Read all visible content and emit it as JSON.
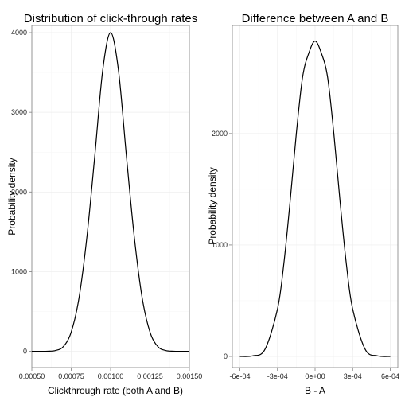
{
  "chart_data": [
    {
      "type": "line",
      "title": "Distribution of click-through rates",
      "xlabel": "Clickthrough rate (both A and B)",
      "ylabel": "Probability density",
      "xlim": [
        0.0005,
        0.0015
      ],
      "ylim": [
        0,
        4000
      ],
      "x_ticks": [
        "0.00050",
        "0.00075",
        "0.00100",
        "0.00125",
        "0.00150"
      ],
      "y_ticks": [
        "0",
        "1000",
        "2000",
        "3000",
        "4000"
      ],
      "grid": true,
      "series": [
        {
          "x": [
            0.0005,
            0.00055,
            0.0006,
            0.00065,
            0.0007,
            0.00075,
            0.0008,
            0.00085,
            0.0009,
            0.00095,
            0.001,
            0.00105,
            0.0011,
            0.00115,
            0.0012,
            0.00125,
            0.0013,
            0.00135,
            0.0014,
            0.00145,
            0.0015
          ],
          "values": [
            0,
            0,
            1,
            10,
            59,
            242,
            676,
            1442,
            2460,
            3527,
            4000,
            3527,
            2460,
            1442,
            676,
            242,
            59,
            10,
            1,
            0,
            0
          ]
        }
      ]
    },
    {
      "type": "line",
      "title": "Difference between A and B",
      "xlabel": "B - A",
      "ylabel": "Probability density",
      "xlim": [
        -0.0006,
        0.0006
      ],
      "ylim": [
        0,
        2830
      ],
      "x_ticks": [
        "-6e-04",
        "-3e-04",
        "0e+00",
        "3e-04",
        "6e-04"
      ],
      "y_ticks": [
        "0",
        "1000",
        "2000"
      ],
      "grid": true,
      "series": [
        {
          "x": [
            -0.0006,
            -0.0005,
            -0.0004,
            -0.0003,
            -0.00025,
            -0.0002,
            -0.00015,
            -0.0001,
            -5e-05,
            0,
            5e-05,
            0.0001,
            0.00015,
            0.0002,
            0.00025,
            0.0003,
            0.0004,
            0.0005,
            0.0006
          ],
          "values": [
            0,
            5,
            63,
            425,
            825,
            1381,
            1995,
            2504,
            2722,
            2830,
            2722,
            2504,
            1995,
            1381,
            825,
            425,
            63,
            5,
            0
          ]
        }
      ]
    }
  ]
}
